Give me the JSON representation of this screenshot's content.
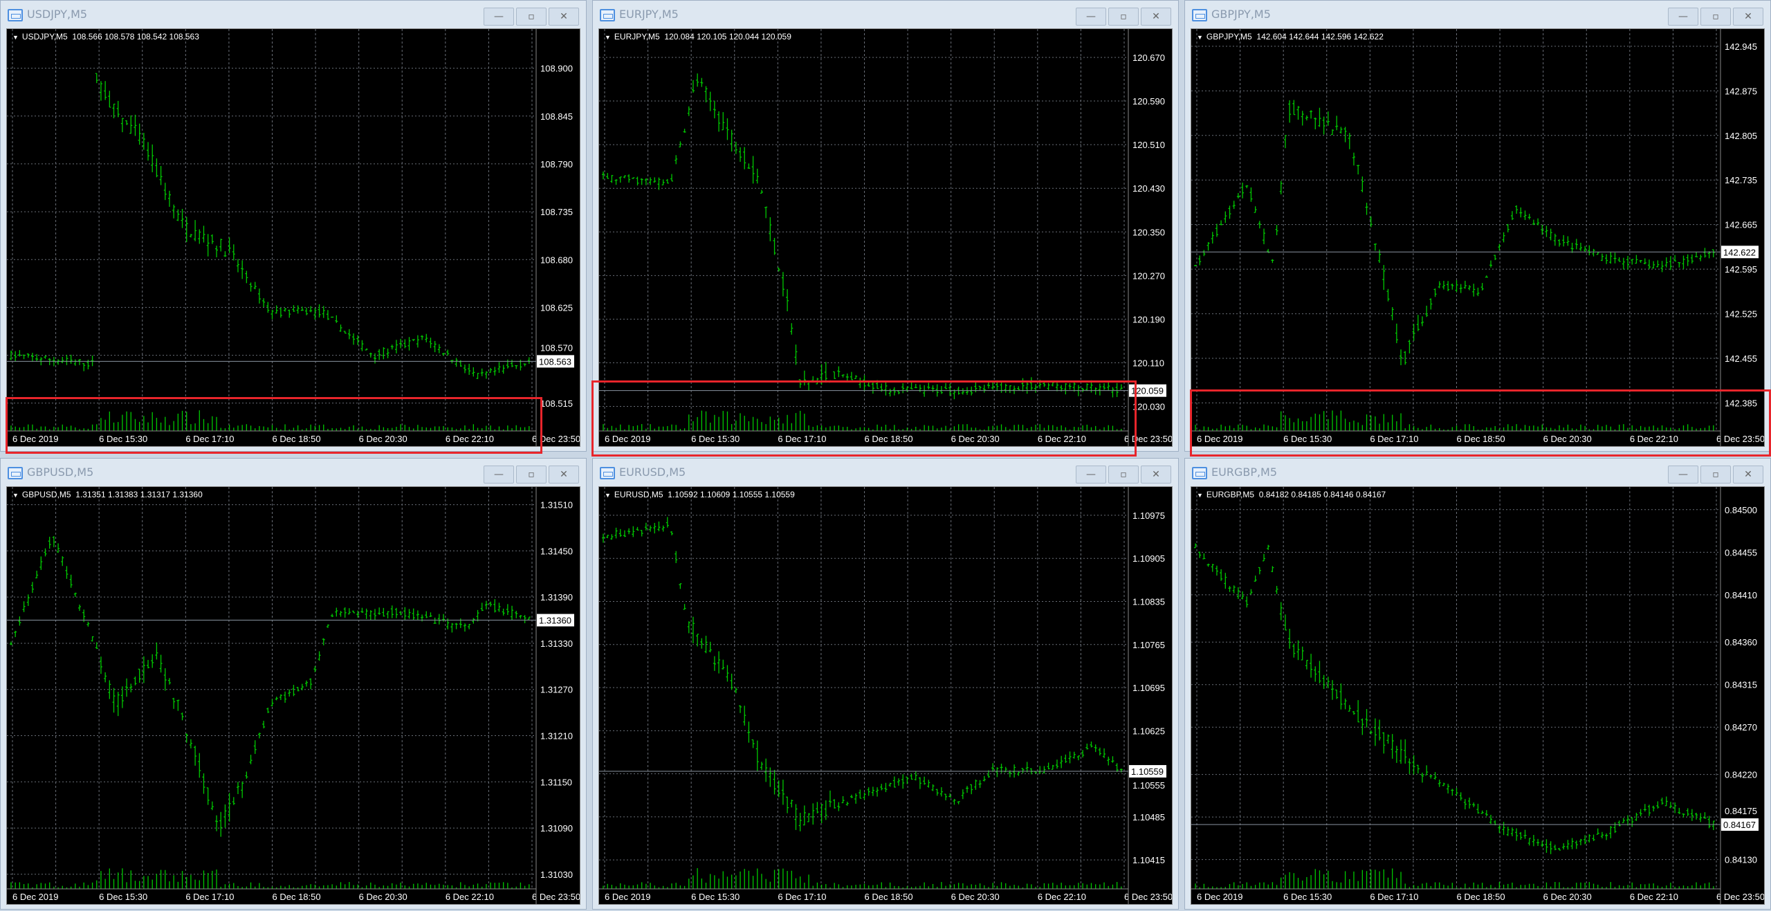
{
  "window_buttons": {
    "minimize": "—",
    "restore": "▫",
    "close": "✕"
  },
  "colors": {
    "candle": "#00c800",
    "grid": "#6a6f78",
    "highlight": "#e8252b",
    "background": "#000000"
  },
  "x_ticks": [
    "6 Dec 2019",
    "6 Dec 15:30",
    "6 Dec 17:10",
    "6 Dec 18:50",
    "6 Dec 20:30",
    "6 Dec 22:10",
    "6 Dec 23:50"
  ],
  "charts": [
    {
      "title": "USDJPY,M5",
      "header": "USDJPY,M5  108.566 108.578 108.542 108.563",
      "current": "108.563",
      "current_value": 108.563,
      "y_ticks": [
        "108.900",
        "108.845",
        "108.790",
        "108.735",
        "108.680",
        "108.625",
        "108.570",
        "108.515"
      ],
      "ylim": [
        108.483,
        108.945
      ],
      "highlighted": true,
      "price_path": [
        [
          0,
          108.57
        ],
        [
          0.16,
          108.56
        ],
        [
          0.165,
          108.89
        ],
        [
          0.2,
          108.85
        ],
        [
          0.25,
          108.82
        ],
        [
          0.33,
          108.72
        ],
        [
          0.42,
          108.69
        ],
        [
          0.5,
          108.62
        ],
        [
          0.6,
          108.62
        ],
        [
          0.7,
          108.57
        ],
        [
          0.8,
          108.59
        ],
        [
          0.9,
          108.545
        ],
        [
          1,
          108.563
        ]
      ]
    },
    {
      "title": "EURJPY,M5",
      "header": "EURJPY,M5  120.084 120.105 120.044 120.059",
      "current": "120.059",
      "current_value": 120.059,
      "y_ticks": [
        "120.670",
        "120.590",
        "120.510",
        "120.430",
        "120.350",
        "120.270",
        "120.190",
        "120.110",
        "120.030"
      ],
      "ylim": [
        119.985,
        120.722
      ],
      "highlighted": true,
      "price_path": [
        [
          0,
          120.45
        ],
        [
          0.13,
          120.44
        ],
        [
          0.16,
          120.55
        ],
        [
          0.18,
          120.63
        ],
        [
          0.25,
          120.52
        ],
        [
          0.3,
          120.45
        ],
        [
          0.36,
          120.2
        ],
        [
          0.38,
          120.07
        ],
        [
          0.45,
          120.09
        ],
        [
          0.55,
          120.06
        ],
        [
          0.7,
          120.06
        ],
        [
          0.85,
          120.07
        ],
        [
          1,
          120.059
        ]
      ]
    },
    {
      "title": "GBPJPY,M5",
      "header": "GBPJPY,M5  142.604 142.644 142.596 142.622",
      "current": "142.622",
      "current_value": 142.622,
      "y_ticks": [
        "142.945",
        "142.875",
        "142.805",
        "142.735",
        "142.665",
        "142.595",
        "142.525",
        "142.455",
        "142.385"
      ],
      "ylim": [
        142.341,
        142.972
      ],
      "highlighted": true,
      "price_path": [
        [
          0,
          142.6
        ],
        [
          0.1,
          142.73
        ],
        [
          0.15,
          142.6
        ],
        [
          0.18,
          142.85
        ],
        [
          0.3,
          142.8
        ],
        [
          0.36,
          142.6
        ],
        [
          0.4,
          142.45
        ],
        [
          0.47,
          142.57
        ],
        [
          0.55,
          142.56
        ],
        [
          0.62,
          142.69
        ],
        [
          0.7,
          142.64
        ],
        [
          0.8,
          142.61
        ],
        [
          0.9,
          142.6
        ],
        [
          1,
          142.622
        ]
      ]
    },
    {
      "title": "GBPUSD,M5",
      "header": "GBPUSD,M5  1.31351 1.31383 1.31317 1.31360",
      "current": "1.31360",
      "current_value": 1.3136,
      "y_ticks": [
        "1.31510",
        "1.31450",
        "1.31390",
        "1.31330",
        "1.31270",
        "1.31210",
        "1.31150",
        "1.31090",
        "1.31030"
      ],
      "ylim": [
        1.31011,
        1.31533
      ],
      "highlighted": false,
      "price_path": [
        [
          0,
          1.3133
        ],
        [
          0.08,
          1.3147
        ],
        [
          0.15,
          1.3135
        ],
        [
          0.2,
          1.3125
        ],
        [
          0.28,
          1.3132
        ],
        [
          0.35,
          1.312
        ],
        [
          0.4,
          1.3109
        ],
        [
          0.45,
          1.3115
        ],
        [
          0.5,
          1.3125
        ],
        [
          0.58,
          1.3128
        ],
        [
          0.62,
          1.3137
        ],
        [
          0.75,
          1.3137
        ],
        [
          0.88,
          1.3135
        ],
        [
          0.92,
          1.3138
        ],
        [
          1,
          1.3136
        ]
      ]
    },
    {
      "title": "EURUSD,M5",
      "header": "EURUSD,M5  1.10592 1.10609 1.10555 1.10559",
      "current": "1.10559",
      "current_value": 1.10559,
      "y_ticks": [
        "1.10975",
        "1.10905",
        "1.10835",
        "1.10765",
        "1.10695",
        "1.10625",
        "1.10555",
        "1.10485",
        "1.10415"
      ],
      "ylim": [
        1.10368,
        1.11021
      ],
      "highlighted": false,
      "price_path": [
        [
          0,
          1.1094
        ],
        [
          0.13,
          1.1096
        ],
        [
          0.16,
          1.1081
        ],
        [
          0.25,
          1.107
        ],
        [
          0.3,
          1.1058
        ],
        [
          0.38,
          1.1048
        ],
        [
          0.5,
          1.1052
        ],
        [
          0.6,
          1.1055
        ],
        [
          0.68,
          1.1051
        ],
        [
          0.75,
          1.1056
        ],
        [
          0.85,
          1.1056
        ],
        [
          0.95,
          1.106
        ],
        [
          1,
          1.10559
        ]
      ]
    },
    {
      "title": "EURGBP,M5",
      "header": "EURGBP,M5  0.84182 0.84185 0.84146 0.84167",
      "current": "0.84167",
      "current_value": 0.84167,
      "y_ticks": [
        "0.84500",
        "0.84455",
        "0.84410",
        "0.84360",
        "0.84315",
        "0.84270",
        "0.84220",
        "0.84175",
        "0.84130"
      ],
      "ylim": [
        0.84099,
        0.84524
      ],
      "highlighted": false,
      "price_path": [
        [
          0,
          0.8446
        ],
        [
          0.1,
          0.844
        ],
        [
          0.14,
          0.8446
        ],
        [
          0.18,
          0.8436
        ],
        [
          0.3,
          0.8429
        ],
        [
          0.4,
          0.8424
        ],
        [
          0.5,
          0.842
        ],
        [
          0.6,
          0.8416
        ],
        [
          0.7,
          0.8414
        ],
        [
          0.8,
          0.8416
        ],
        [
          0.9,
          0.8419
        ],
        [
          1,
          0.84167
        ]
      ]
    }
  ]
}
